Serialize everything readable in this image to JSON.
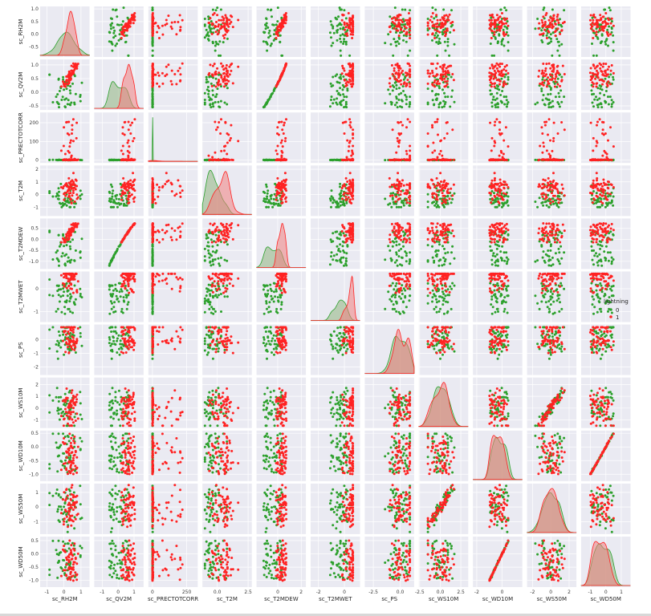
{
  "chart_data": {
    "type": "scatter",
    "variables": [
      "sc_RH2M",
      "sc_QV2M",
      "sc_PRECTOTCORR",
      "sc_T2M",
      "sc_T2MDEW",
      "sc_T2MWET",
      "sc_PS",
      "sc_WS10M",
      "sc_WD10M",
      "sc_WS50M",
      "sc_WD50M"
    ],
    "x_ticks": [
      {
        "values": [
          -1,
          0,
          1
        ],
        "labels": [
          "-1",
          "0",
          "1"
        ]
      },
      {
        "values": [
          -1,
          0,
          1
        ],
        "labels": [
          "-1",
          "0",
          "1"
        ]
      },
      {
        "values": [
          0,
          250
        ],
        "labels": [
          "0",
          "250"
        ]
      },
      {
        "values": [
          0,
          2.5
        ],
        "labels": [
          "0.0",
          "2.5"
        ]
      },
      {
        "values": [
          0,
          2
        ],
        "labels": [
          "0",
          "2"
        ]
      },
      {
        "values": [
          -2,
          0
        ],
        "labels": [
          "-2",
          "0"
        ]
      },
      {
        "values": [
          -2.5,
          0
        ],
        "labels": [
          "-2.5",
          "0.0"
        ]
      },
      {
        "values": [
          -2.5,
          0,
          2.5
        ],
        "labels": [
          "-2.5",
          "0.0",
          "2.5"
        ]
      },
      {
        "values": [
          -2,
          0
        ],
        "labels": [
          "-2",
          "0"
        ]
      },
      {
        "values": [
          -2,
          0,
          2
        ],
        "labels": [
          "-2",
          "0",
          "2"
        ]
      },
      {
        "values": [
          -1,
          0,
          1
        ],
        "labels": [
          "-1",
          "0",
          "1"
        ]
      }
    ],
    "x_ranges": [
      [
        -1.4,
        1.5
      ],
      [
        -1.5,
        1.6
      ],
      [
        -30,
        330
      ],
      [
        -1.2,
        2.8
      ],
      [
        -1.8,
        2.4
      ],
      [
        -2.6,
        1.2
      ],
      [
        -3.3,
        1.3
      ],
      [
        -2.6,
        3.4
      ],
      [
        -2.3,
        1.6
      ],
      [
        -2.6,
        2.8
      ],
      [
        -1.6,
        1.6
      ]
    ],
    "y_ticks": [
      {
        "values": [
          1.0,
          0.5,
          0.0,
          -0.5
        ],
        "labels": [
          "1.0",
          "0.5",
          "0.0",
          "-0.5"
        ]
      },
      {
        "values": [
          1.0,
          0.5,
          0.0,
          -0.5
        ],
        "labels": [
          "1.0",
          "0.5",
          "0.0",
          "-0.5"
        ]
      },
      {
        "values": [
          200,
          100,
          0
        ],
        "labels": [
          "200",
          "100",
          "0"
        ]
      },
      {
        "values": [
          2,
          1,
          0,
          -1
        ],
        "labels": [
          "2",
          "1",
          "0",
          "-1"
        ]
      },
      {
        "values": [
          0.5,
          0.0,
          -0.5,
          -1.0
        ],
        "labels": [
          "0.5",
          "0.0",
          "-0.5",
          "-1.0"
        ]
      },
      {
        "values": [
          0,
          -1
        ],
        "labels": [
          "0",
          "-1"
        ]
      },
      {
        "values": [
          0,
          -1,
          -2
        ],
        "labels": [
          "0",
          "-1",
          "-2"
        ]
      },
      {
        "values": [
          2,
          1,
          0,
          -1
        ],
        "labels": [
          "2",
          "1",
          "0",
          "-1"
        ]
      },
      {
        "values": [
          0.5,
          0.0,
          -0.5,
          -1.0
        ],
        "labels": [
          "0.5",
          "0.0",
          "-0.5",
          "-1.0"
        ]
      },
      {
        "values": [
          1,
          0,
          -1
        ],
        "labels": [
          "1",
          "0",
          "-1"
        ]
      },
      {
        "values": [
          0.5,
          0.0,
          -0.5,
          -1.0
        ],
        "labels": [
          "0.5",
          "0.0",
          "-0.5",
          "-1.0"
        ]
      }
    ],
    "y_ranges": [
      [
        -0.9,
        1.1
      ],
      [
        -0.65,
        1.2
      ],
      [
        -15,
        255
      ],
      [
        -1.7,
        2.3
      ],
      [
        -1.35,
        0.95
      ],
      [
        -1.45,
        0.75
      ],
      [
        -2.6,
        1.1
      ],
      [
        -1.7,
        2.6
      ],
      [
        -1.25,
        0.6
      ],
      [
        -1.85,
        1.6
      ],
      [
        -1.25,
        0.65
      ]
    ],
    "diagonal": "kde",
    "grid": true,
    "hue": {
      "title": "lightning",
      "levels": [
        "0",
        "1"
      ],
      "colors": [
        "#2ca02c",
        "#ff2222"
      ]
    },
    "legend_position": "right"
  },
  "colors": {
    "panel_bg": "#eaeaf2",
    "grid": "#ffffff",
    "class0": "#2ca02c",
    "class1": "#ff2222",
    "class0_fill": "#8fb47f",
    "class1_fill": "#f08080",
    "overlap_fill": "#9a8a5e"
  }
}
